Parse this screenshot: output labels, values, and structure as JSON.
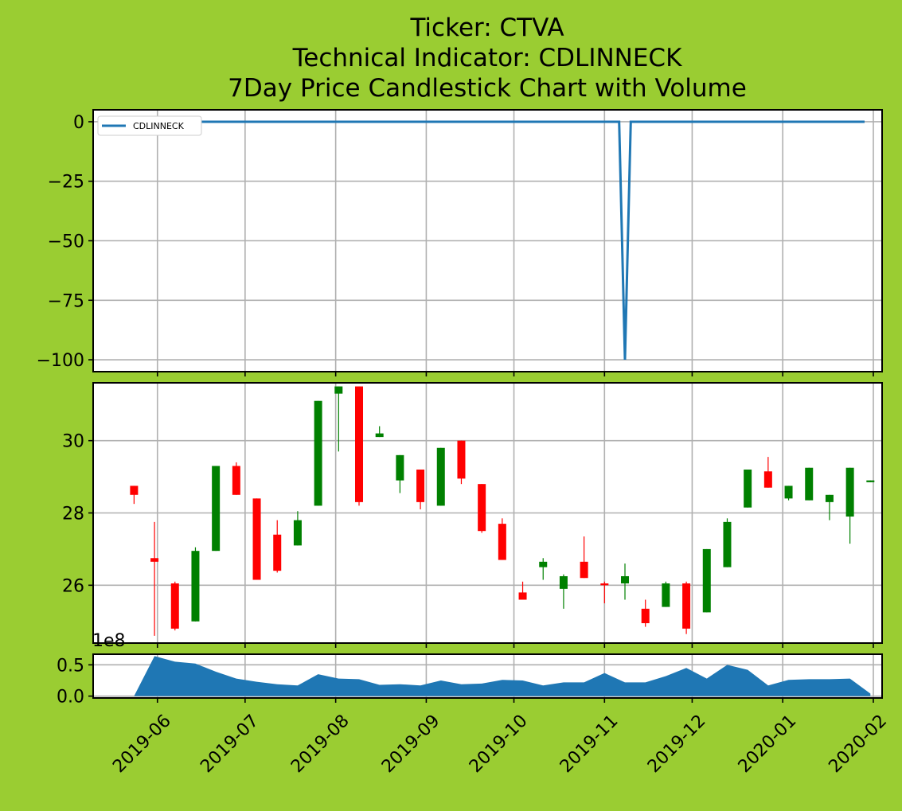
{
  "colors": {
    "figure_background": "#9acd32",
    "indicator_line": "#1f77b4",
    "volume_fill": "#1f77b4",
    "candle_up": "#008000",
    "candle_down": "#ff0000",
    "grid": "#b0b0b0"
  },
  "title": {
    "line1": "Ticker: CTVA",
    "line2": "Technical Indicator: CDLINNECK",
    "line3": "7Day Price Candlestick Chart with Volume"
  },
  "x_ticks": [
    "2019-06",
    "2019-07",
    "2019-08",
    "2019-09",
    "2019-10",
    "2019-11",
    "2019-12",
    "2020-01",
    "2020-02"
  ],
  "volume_scale_label": "1e8",
  "chart_data": [
    {
      "type": "line",
      "panel": "indicator",
      "legend": {
        "entries": [
          "CDLINNECK"
        ],
        "placement": "top-left"
      },
      "grid": true,
      "x_range": [
        "2019-05-10",
        "2020-02-04"
      ],
      "ylim": [
        -105,
        5
      ],
      "y_ticks": [
        0,
        -25,
        -50,
        -75,
        -100
      ],
      "series": [
        {
          "name": "CDLINNECK",
          "x": [
            "2019-05-24",
            "2019-11-06",
            "2019-11-08",
            "2019-11-10",
            "2020-01-29"
          ],
          "values": [
            0,
            0,
            -100,
            0,
            0
          ]
        }
      ]
    },
    {
      "type": "candlestick",
      "panel": "price",
      "grid": true,
      "x_range": [
        "2019-05-10",
        "2020-02-04"
      ],
      "ylim": [
        24.4,
        31.6
      ],
      "y_ticks": [
        26,
        28,
        30
      ],
      "candles": [
        {
          "date": "2019-05-24",
          "open": 28.75,
          "high": 28.75,
          "low": 28.25,
          "close": 28.5
        },
        {
          "date": "2019-05-31",
          "open": 26.75,
          "high": 27.75,
          "low": 24.6,
          "close": 26.65
        },
        {
          "date": "2019-06-07",
          "open": 26.05,
          "high": 26.1,
          "low": 24.75,
          "close": 24.8
        },
        {
          "date": "2019-06-14",
          "open": 25.0,
          "high": 27.05,
          "low": 25.0,
          "close": 26.95
        },
        {
          "date": "2019-06-21",
          "open": 26.95,
          "high": 29.3,
          "low": 26.95,
          "close": 29.3
        },
        {
          "date": "2019-06-28",
          "open": 29.3,
          "high": 29.4,
          "low": 28.5,
          "close": 28.5
        },
        {
          "date": "2019-07-05",
          "open": 28.4,
          "high": 28.4,
          "low": 26.15,
          "close": 26.15
        },
        {
          "date": "2019-07-12",
          "open": 27.4,
          "high": 27.8,
          "low": 26.35,
          "close": 26.4
        },
        {
          "date": "2019-07-19",
          "open": 27.1,
          "high": 28.05,
          "low": 27.1,
          "close": 27.8
        },
        {
          "date": "2019-07-26",
          "open": 28.2,
          "high": 31.1,
          "low": 28.2,
          "close": 31.1
        },
        {
          "date": "2019-08-02",
          "open": 31.3,
          "high": 31.5,
          "low": 29.7,
          "close": 31.5
        },
        {
          "date": "2019-08-09",
          "open": 31.5,
          "high": 31.5,
          "low": 28.2,
          "close": 28.3
        },
        {
          "date": "2019-08-16",
          "open": 30.1,
          "high": 30.4,
          "low": 30.1,
          "close": 30.2
        },
        {
          "date": "2019-08-23",
          "open": 28.9,
          "high": 29.6,
          "low": 28.55,
          "close": 29.6
        },
        {
          "date": "2019-08-30",
          "open": 29.2,
          "high": 29.2,
          "low": 28.1,
          "close": 28.3
        },
        {
          "date": "2019-09-06",
          "open": 28.2,
          "high": 29.8,
          "low": 28.2,
          "close": 29.8
        },
        {
          "date": "2019-09-13",
          "open": 30.0,
          "high": 30.0,
          "low": 28.8,
          "close": 28.95
        },
        {
          "date": "2019-09-20",
          "open": 28.8,
          "high": 28.8,
          "low": 27.45,
          "close": 27.5
        },
        {
          "date": "2019-09-27",
          "open": 27.7,
          "high": 27.85,
          "low": 26.7,
          "close": 26.7
        },
        {
          "date": "2019-10-04",
          "open": 25.8,
          "high": 26.1,
          "low": 25.6,
          "close": 25.6
        },
        {
          "date": "2019-10-11",
          "open": 26.5,
          "high": 26.75,
          "low": 26.15,
          "close": 26.65
        },
        {
          "date": "2019-10-18",
          "open": 25.9,
          "high": 26.3,
          "low": 25.35,
          "close": 26.25
        },
        {
          "date": "2019-10-25",
          "open": 26.65,
          "high": 27.35,
          "low": 26.2,
          "close": 26.2
        },
        {
          "date": "2019-11-01",
          "open": 26.05,
          "high": 26.1,
          "low": 25.5,
          "close": 26.0
        },
        {
          "date": "2019-11-08",
          "open": 26.05,
          "high": 26.6,
          "low": 25.6,
          "close": 26.25
        },
        {
          "date": "2019-11-15",
          "open": 25.35,
          "high": 25.6,
          "low": 24.85,
          "close": 24.95
        },
        {
          "date": "2019-11-22",
          "open": 25.4,
          "high": 26.1,
          "low": 25.4,
          "close": 26.05
        },
        {
          "date": "2019-11-29",
          "open": 26.05,
          "high": 26.1,
          "low": 24.65,
          "close": 24.8
        },
        {
          "date": "2019-12-06",
          "open": 25.25,
          "high": 27.0,
          "low": 25.25,
          "close": 27.0
        },
        {
          "date": "2019-12-13",
          "open": 26.5,
          "high": 27.85,
          "low": 26.5,
          "close": 27.75
        },
        {
          "date": "2019-12-20",
          "open": 28.15,
          "high": 29.2,
          "low": 28.15,
          "close": 29.2
        },
        {
          "date": "2019-12-27",
          "open": 29.15,
          "high": 29.55,
          "low": 28.7,
          "close": 28.7
        },
        {
          "date": "2020-01-03",
          "open": 28.4,
          "high": 28.75,
          "low": 28.35,
          "close": 28.75
        },
        {
          "date": "2020-01-10",
          "open": 28.35,
          "high": 29.25,
          "low": 28.35,
          "close": 29.25
        },
        {
          "date": "2020-01-17",
          "open": 28.3,
          "high": 28.5,
          "low": 27.8,
          "close": 28.5
        },
        {
          "date": "2020-01-24",
          "open": 27.9,
          "high": 29.25,
          "low": 27.15,
          "close": 29.25
        },
        {
          "date": "2020-01-31",
          "open": 28.85,
          "high": 28.9,
          "low": 28.85,
          "close": 28.9
        }
      ]
    },
    {
      "type": "area",
      "panel": "volume",
      "grid": true,
      "x_range": [
        "2019-05-10",
        "2020-02-04"
      ],
      "ylim": [
        -0.03,
        0.67
      ],
      "y_ticks": [
        0.0,
        0.5
      ],
      "y_tick_labels": [
        "0.0",
        "0.5"
      ],
      "y_multiplier": "1e8",
      "series": [
        {
          "x": [
            "2019-05-24",
            "2019-05-31",
            "2019-06-07",
            "2019-06-14",
            "2019-06-21",
            "2019-06-28",
            "2019-07-05",
            "2019-07-12",
            "2019-07-19",
            "2019-07-26",
            "2019-08-02",
            "2019-08-09",
            "2019-08-16",
            "2019-08-23",
            "2019-08-30",
            "2019-09-06",
            "2019-09-13",
            "2019-09-20",
            "2019-09-27",
            "2019-10-04",
            "2019-10-11",
            "2019-10-18",
            "2019-10-25",
            "2019-11-01",
            "2019-11-08",
            "2019-11-15",
            "2019-11-22",
            "2019-11-29",
            "2019-12-06",
            "2019-12-13",
            "2019-12-20",
            "2019-12-27",
            "2020-01-03",
            "2020-01-10",
            "2020-01-17",
            "2020-01-24",
            "2020-01-31"
          ],
          "values": [
            0.0,
            0.64,
            0.55,
            0.52,
            0.39,
            0.28,
            0.23,
            0.19,
            0.17,
            0.35,
            0.28,
            0.27,
            0.18,
            0.19,
            0.17,
            0.25,
            0.19,
            0.2,
            0.26,
            0.25,
            0.17,
            0.22,
            0.22,
            0.37,
            0.22,
            0.22,
            0.32,
            0.45,
            0.28,
            0.5,
            0.42,
            0.17,
            0.26,
            0.27,
            0.27,
            0.28,
            0.04
          ]
        }
      ]
    }
  ]
}
